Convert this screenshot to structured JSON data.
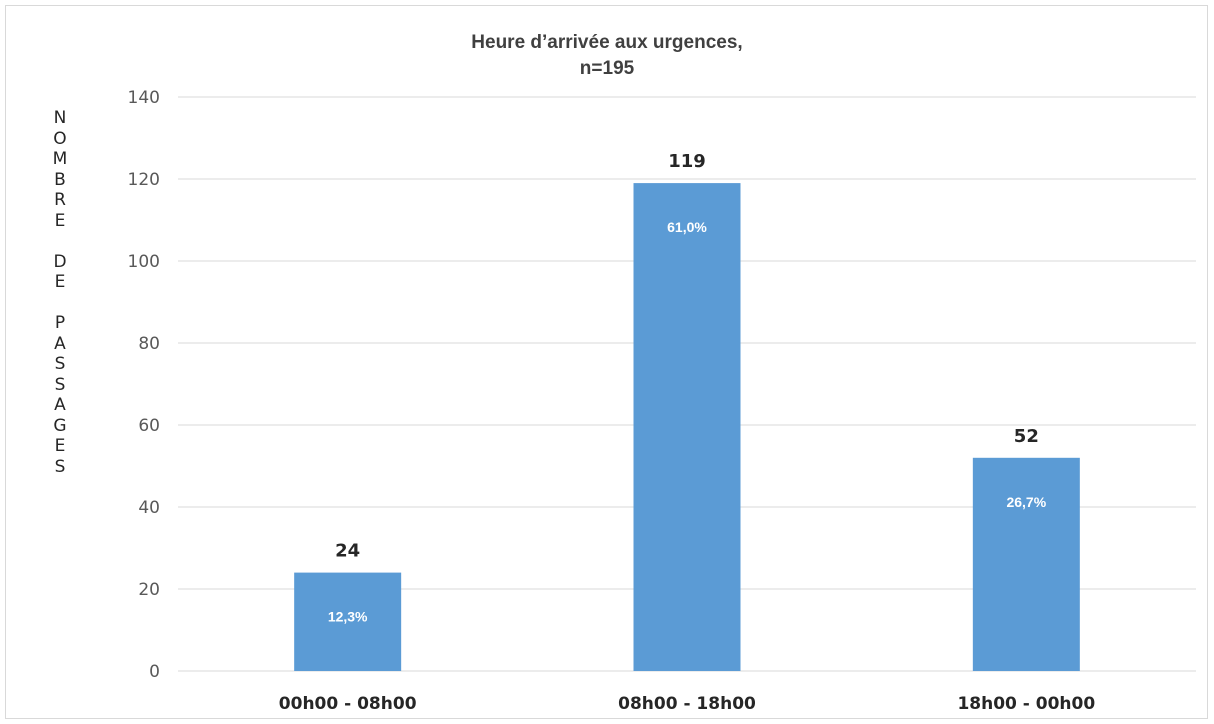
{
  "chart_data": {
    "type": "bar",
    "title_line1": "Heure d’arrivée aux urgences,",
    "title_line2": "n=195",
    "ylabel": "NOMBRE DE PASSAGES",
    "ylabel_display": "N\nO\nM\nB\nR\nE\n\nD\nE\n\nP\nA\nS\nS\nA\nG\nE\nS",
    "xlabel": "",
    "categories": [
      "00h00 - 08h00",
      "08h00 - 18h00",
      "18h00 - 00h00"
    ],
    "values": [
      24,
      119,
      52
    ],
    "percent_labels": [
      "12,3%",
      "61,0%",
      "26,7%"
    ],
    "ylim": [
      0,
      140
    ],
    "yticks": [
      0,
      20,
      40,
      60,
      80,
      100,
      120,
      140
    ],
    "grid": true,
    "legend": "none",
    "bar_color": "#5b9bd5",
    "grid_color": "#d9d9d9"
  }
}
